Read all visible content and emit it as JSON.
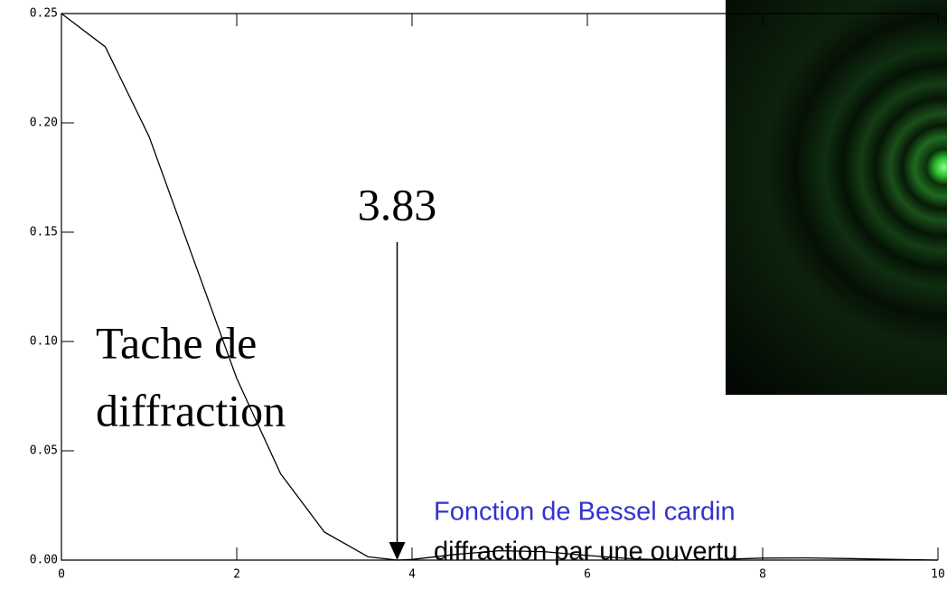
{
  "chart_data": {
    "type": "line",
    "x": [
      0,
      0.5,
      1.0,
      1.5,
      2.0,
      2.5,
      3.0,
      3.5,
      3.83,
      4.0,
      4.5,
      5.0,
      5.5,
      6.0,
      6.5,
      7.0,
      7.5,
      8.0,
      8.5,
      9.0,
      9.5,
      10
    ],
    "series": [
      {
        "color": "#000000",
        "values": [
          0.25,
          0.2348,
          0.1937,
          0.1383,
          0.0831,
          0.0395,
          0.0128,
          0.0015,
          0,
          0.0003,
          0.0026,
          0.0043,
          0.0039,
          0.0021,
          0.0006,
          0,
          0.0003,
          0.0009,
          0.001,
          0.0007,
          0.0003,
          0
        ]
      }
    ],
    "xlim": [
      0,
      10
    ],
    "ylim": [
      0,
      0.25
    ],
    "xticks": [
      0,
      2,
      4,
      6,
      8,
      10
    ],
    "yticks": [
      {
        "value": 0,
        "label": "0.00"
      },
      {
        "value": 0.05,
        "label": "0.05"
      },
      {
        "value": 0.1,
        "label": "0.10"
      },
      {
        "value": 0.15,
        "label": "0.15"
      },
      {
        "value": 0.2,
        "label": "0.20"
      },
      {
        "value": 0.25,
        "label": "0.25"
      }
    ],
    "annotations": {
      "zero": {
        "text": "3.83",
        "x": 3.83
      },
      "spot": [
        "Tache de",
        "diffraction"
      ],
      "caption": [
        "Fonction de Bessel cardin",
        "diffraction par une ouvertu"
      ]
    }
  }
}
